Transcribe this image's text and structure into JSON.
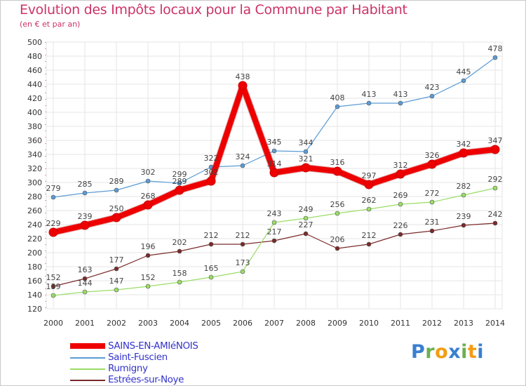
{
  "header": {
    "title": "Evolution des Impôts locaux pour la Commune par Habitant",
    "subtitle": "(en € et par an)"
  },
  "logo": {
    "text": "Proxiti",
    "letters": [
      {
        "ch": "P",
        "color": "#3a7fd0"
      },
      {
        "ch": "r",
        "color": "#6ab04c"
      },
      {
        "ch": "o",
        "color": "#f39c12"
      },
      {
        "ch": "x",
        "color": "#3a7fd0"
      },
      {
        "ch": "i",
        "color": "#6ab04c"
      },
      {
        "ch": "t",
        "color": "#f39c12"
      },
      {
        "ch": "i",
        "color": "#3a7fd0"
      }
    ]
  },
  "chart_data": {
    "type": "line",
    "title": "Evolution des Impôts locaux pour la Commune par Habitant",
    "ylabel": "(en € et par an)",
    "xlabel": "",
    "categories": [
      "2000",
      "2001",
      "2002",
      "2003",
      "2004",
      "2005",
      "2006",
      "2007",
      "2008",
      "2009",
      "2010",
      "2011",
      "2012",
      "2013",
      "2014"
    ],
    "ylim": [
      120,
      500
    ],
    "yticks": [
      120,
      140,
      160,
      180,
      200,
      220,
      240,
      260,
      280,
      300,
      320,
      340,
      360,
      380,
      400,
      420,
      440,
      460,
      480,
      500
    ],
    "grid": true,
    "legend_position": "bottom-left",
    "series": [
      {
        "name": "SAINS-EN-AMIéNOIS",
        "color": "#ee0000",
        "values": [
          229,
          239,
          250,
          268,
          289,
          302,
          438,
          314,
          321,
          316,
          297,
          312,
          326,
          342,
          347
        ]
      },
      {
        "name": "Saint-Fuscien",
        "color": "#5b9bd5",
        "values": [
          279,
          285,
          289,
          302,
          299,
          322,
          324,
          345,
          344,
          408,
          413,
          413,
          423,
          445,
          478
        ]
      },
      {
        "name": "Rumigny",
        "color": "#99dd66",
        "values": [
          139,
          144,
          147,
          152,
          158,
          165,
          173,
          243,
          249,
          256,
          262,
          269,
          272,
          282,
          292
        ]
      },
      {
        "name": "Estrées-sur-Noye",
        "color": "#7a2a2a",
        "values": [
          152,
          163,
          177,
          196,
          202,
          212,
          212,
          217,
          227,
          206,
          212,
          226,
          231,
          239,
          242
        ]
      }
    ]
  }
}
